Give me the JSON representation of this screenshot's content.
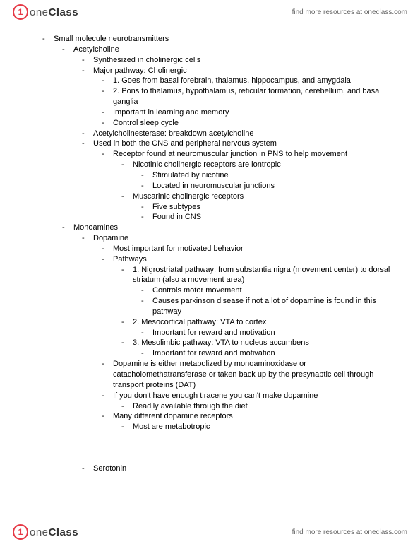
{
  "brand": {
    "circle_glyph": "1",
    "name_prefix": "one",
    "name_suffix": "Class"
  },
  "resources_text": "find more resources at oneclass.com",
  "outline": {
    "l0": "Small molecule neurotransmitters",
    "ach": {
      "title": "Acetylcholine",
      "syn": "Synthesized in cholinergic cells",
      "major": "Major pathway: Cholinergic",
      "p1": "1. Goes from basal forebrain, thalamus, hippocampus, and amygdala",
      "p2": "2. Pons to thalamus, hypothalamus, reticular formation, cerebellum, and basal ganglia",
      "imp": "Important in learning and memory",
      "sleep": "Control sleep cycle",
      "ache": "Acetylcholinesterase: breakdown acetylcholine",
      "use": "Used in both the CNS and peripheral nervous system",
      "rec": "Receptor found at neuromuscular junction in PNS to help movement",
      "nic": "Nicotinic cholinergic receptors are iontropic",
      "nic1": "Stimulated by nicotine",
      "nic2": "Located in neuromuscular junctions",
      "mus": "Muscarinic cholinergic receptors",
      "mus1": "Five subtypes",
      "mus2": "Found in CNS"
    },
    "mono": {
      "title": "Monoamines",
      "dop": {
        "title": "Dopamine",
        "imp": "Most important for motivated behavior",
        "path": "Pathways",
        "p1": "1. Nigrostriatal pathway: from substantia nigra (movement center) to dorsal striatum (also a movement area)",
        "p1a": "Controls motor movement",
        "p1b": "Causes parkinson disease if not a lot of dopamine is found in this pathway",
        "p2": "2. Mesocortical pathway: VTA to cortex",
        "p2a": "Important for reward and motivation",
        "p3": "3. Mesolimbic pathway: VTA to nucleus accumbens",
        "p3a": "Important for reward and motivation",
        "metab": "Dopamine is either metabolized by monoaminoxidase or catacholomethatransferase or taken back up by the presynaptic cell through transport proteins (DAT)",
        "tir": "If you don't have enough tiracene you can't make dopamine",
        "tir1": "Readily available through the diet",
        "recept": "Many different dopamine receptors",
        "recept1": "Most are metabotropic"
      },
      "ser": "Serotonin"
    }
  }
}
